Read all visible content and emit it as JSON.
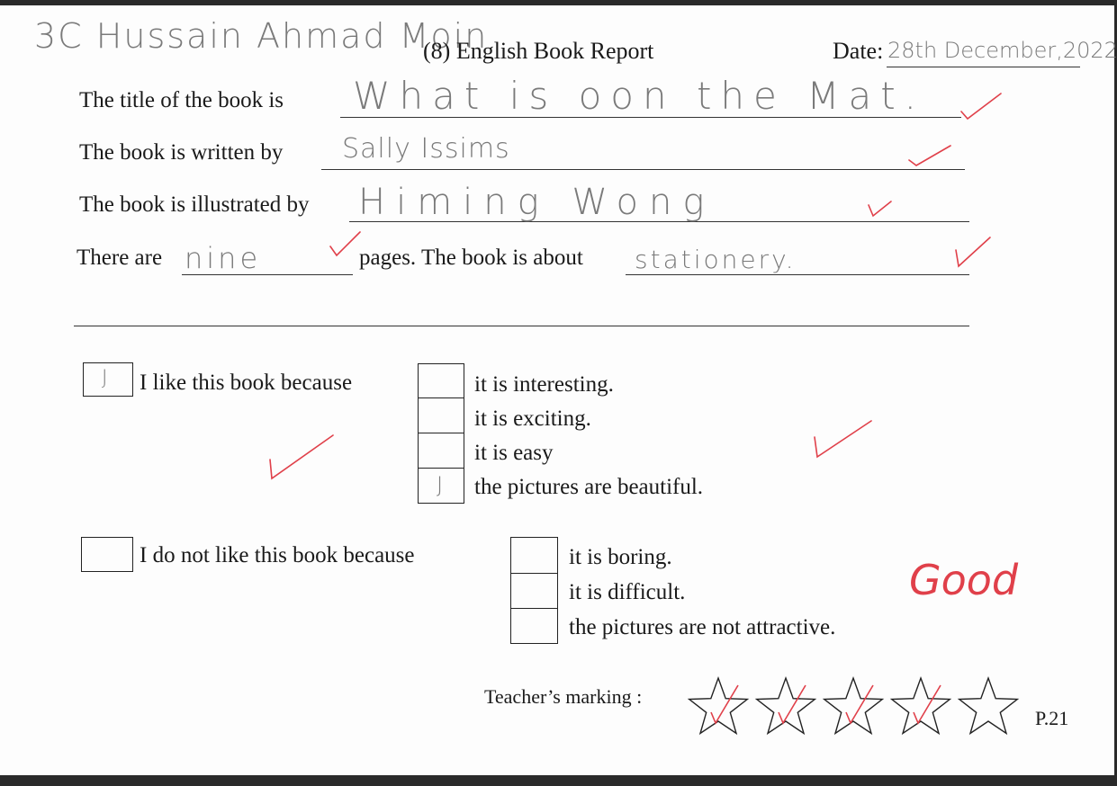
{
  "header": {
    "student_name": "3C Hussain Ahmad Moin",
    "title": "(8) English Book Report",
    "date_label": "Date:",
    "date_value": "28th December,2022"
  },
  "fields": {
    "title_label": "The title of the book is",
    "title_value": "What is oon the Mat.",
    "author_label": "The book is written by",
    "author_value": "Sally Issims",
    "illustrator_label": "The book is illustrated by",
    "illustrator_value": "Himing Wong",
    "pages_label_1": "There are",
    "pages_value": "nine",
    "pages_label_2": "pages. The book is about",
    "about_value": "stationery."
  },
  "like": {
    "label": "I like this book because",
    "checked": true,
    "mark": "J",
    "reasons": [
      {
        "label": "it is interesting.",
        "checked": false
      },
      {
        "label": "it is exciting.",
        "checked": false
      },
      {
        "label": "it is easy",
        "checked": false
      },
      {
        "label": "the pictures are beautiful.",
        "checked": true,
        "mark": "J"
      }
    ]
  },
  "dislike": {
    "label": "I do not like this book because",
    "checked": false,
    "reasons": [
      {
        "label": "it is boring.",
        "checked": false
      },
      {
        "label": "it is difficult.",
        "checked": false
      },
      {
        "label": "the pictures are not attractive.",
        "checked": false
      }
    ]
  },
  "teacher": {
    "comment": "Good",
    "marking_label": "Teacher’s marking :",
    "stars_total": 5,
    "stars_awarded": 4,
    "mark_color": "#e0404a"
  },
  "page_number": "P.21"
}
